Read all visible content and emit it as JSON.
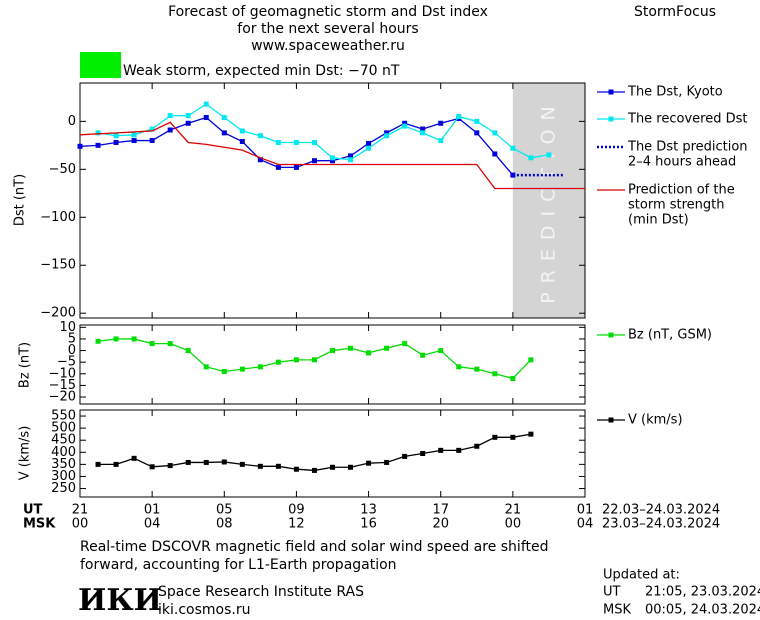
{
  "header": {
    "title_lines": [
      "Forecast of geomagnetic storm and Dst index",
      "for the next several hours",
      "www.spaceweather.ru"
    ],
    "brand": "StormFocus"
  },
  "storm": {
    "label": "Weak storm, expected min Dst: −70 nT",
    "color": "#00ee00"
  },
  "x_axis": {
    "xlim": [
      0,
      28
    ],
    "ut_label": "UT",
    "msk_label": "MSK",
    "xticks": [
      {
        "value": 0,
        "label": "21"
      },
      {
        "value": 4,
        "label": "01"
      },
      {
        "value": 8,
        "label": "05"
      },
      {
        "value": 12,
        "label": "09"
      },
      {
        "value": 16,
        "label": "13"
      },
      {
        "value": 20,
        "label": "17"
      },
      {
        "value": 24,
        "label": "21"
      },
      {
        "value": 28,
        "label": "01"
      }
    ],
    "msk_ticks": [
      {
        "value": 0,
        "label": "00"
      },
      {
        "value": 4,
        "label": "04"
      },
      {
        "value": 8,
        "label": "08"
      },
      {
        "value": 12,
        "label": "12"
      },
      {
        "value": 16,
        "label": "16"
      },
      {
        "value": 20,
        "label": "20"
      },
      {
        "value": 24,
        "label": "00"
      },
      {
        "value": 28,
        "label": "04"
      }
    ],
    "ut_dates": "22.03–24.03.2024",
    "msk_dates": "23.03–24.03.2024"
  },
  "chart_data": [
    {
      "type": "line",
      "ylabel": "Dst (nT)",
      "ylim": [
        -205,
        40
      ],
      "yticks": [
        0,
        {
          "value": -50,
          "label": "−50"
        },
        {
          "value": -100,
          "label": "−100"
        },
        {
          "value": -150,
          "label": "−150"
        },
        {
          "value": -200,
          "label": "−200"
        }
      ],
      "prediction_region": {
        "x": [
          24,
          28
        ],
        "label": "PREDICTION",
        "color": "#d4d4d4"
      },
      "series": [
        {
          "name": [
            "The Dst, Kyoto"
          ],
          "color": "#0000dd",
          "marker": "square",
          "line_style": "solid",
          "x": [
            0,
            1,
            2,
            3,
            4,
            5,
            6,
            7,
            8,
            9,
            10,
            11,
            12,
            13,
            14,
            15,
            16,
            17,
            18,
            19,
            20,
            21,
            22,
            23,
            24
          ],
          "values": [
            -26,
            -25,
            -22,
            -20,
            -20,
            -9,
            -2,
            4,
            -12,
            -21,
            -40,
            -48,
            -48,
            -41,
            -41,
            -36,
            -23,
            -12,
            -2,
            -8,
            -2,
            3,
            -12,
            -34,
            -56
          ]
        },
        {
          "name": [
            "The recovered Dst"
          ],
          "color": "#00e8f0",
          "marker": "square",
          "line_style": "solid",
          "x": [
            0,
            1,
            2,
            3,
            4,
            5,
            6,
            7,
            8,
            9,
            10,
            11,
            12,
            13,
            14,
            15,
            16,
            17,
            18,
            19,
            20,
            21,
            22,
            23,
            24,
            25,
            26
          ],
          "values": [
            null,
            -12,
            -15,
            -14,
            -8,
            6,
            6,
            18,
            4,
            -10,
            -15,
            -22,
            -22,
            -22,
            -38,
            -40,
            -28,
            -15,
            -5,
            -12,
            -20,
            5,
            0,
            -12,
            -28,
            -38,
            -35
          ]
        },
        {
          "name": [
            "The Dst prediction",
            "2–4 hours ahead"
          ],
          "color": "#0000dd",
          "marker": "none",
          "line_style": "dotted",
          "x": [
            24,
            26.8
          ],
          "values": [
            -56,
            -56
          ]
        },
        {
          "name": [
            "Prediction of the",
            "storm strength",
            "(min Dst)"
          ],
          "color": "#dd0000",
          "marker": "none",
          "line_style": "solid",
          "x": [
            0,
            4,
            5,
            6,
            7,
            8,
            9,
            10,
            11,
            22,
            23,
            28
          ],
          "values": [
            -14,
            -10,
            -1,
            -22,
            -24,
            -27,
            -30,
            -38,
            -45,
            -45,
            -70,
            -70
          ]
        }
      ]
    },
    {
      "type": "line",
      "ylabel": "Bz (nT)",
      "ylim": [
        -23,
        11
      ],
      "yticks": [
        10,
        5,
        0,
        {
          "value": -5,
          "label": "−5"
        },
        {
          "value": -10,
          "label": "−10"
        },
        {
          "value": -15,
          "label": "−15"
        },
        {
          "value": -20,
          "label": "−20"
        }
      ],
      "series": [
        {
          "name": [
            "Bz (nT, GSM)"
          ],
          "color": "#00dd00",
          "marker": "square",
          "line_style": "solid",
          "x": [
            1,
            2,
            3,
            4,
            5,
            6,
            7,
            8,
            9,
            10,
            11,
            12,
            13,
            14,
            15,
            16,
            17,
            18,
            19,
            20,
            21,
            22,
            23,
            24,
            25
          ],
          "values": [
            4,
            5,
            5,
            3,
            3,
            0,
            -7,
            -9,
            -8,
            -7,
            -5,
            -4,
            -4,
            0,
            1,
            -1,
            1,
            3,
            -2,
            0,
            -7,
            -8,
            -10,
            -12,
            -4
          ]
        }
      ]
    },
    {
      "type": "line",
      "ylabel": "V (km/s)",
      "ylim": [
        215,
        575
      ],
      "yticks": [
        550,
        500,
        450,
        400,
        350,
        300,
        250
      ],
      "series": [
        {
          "name": [
            "V (km/s)"
          ],
          "color": "#000000",
          "marker": "square",
          "line_style": "solid",
          "x": [
            1,
            2,
            3,
            4,
            5,
            6,
            7,
            8,
            9,
            10,
            11,
            12,
            13,
            14,
            15,
            16,
            17,
            18,
            19,
            20,
            21,
            22,
            23,
            24,
            25
          ],
          "values": [
            350,
            350,
            375,
            340,
            345,
            358,
            358,
            360,
            350,
            342,
            342,
            330,
            325,
            338,
            338,
            355,
            358,
            383,
            395,
            408,
            408,
            425,
            462,
            462,
            475
          ]
        }
      ]
    }
  ],
  "footer": {
    "note_lines": [
      "Real-time DSCOVR magnetic field and solar wind speed are shifted",
      "forward, accounting for L1-Earth propagation"
    ],
    "logo": "ИКИ",
    "institute": "Space Research Institute RAS",
    "website": "iki.cosmos.ru",
    "updated_label": "Updated at:",
    "updated": [
      {
        "zone": "UT",
        "time": "21:05, 23.03.2024"
      },
      {
        "zone": "MSK",
        "time": "00:05, 24.03.2024"
      }
    ]
  }
}
